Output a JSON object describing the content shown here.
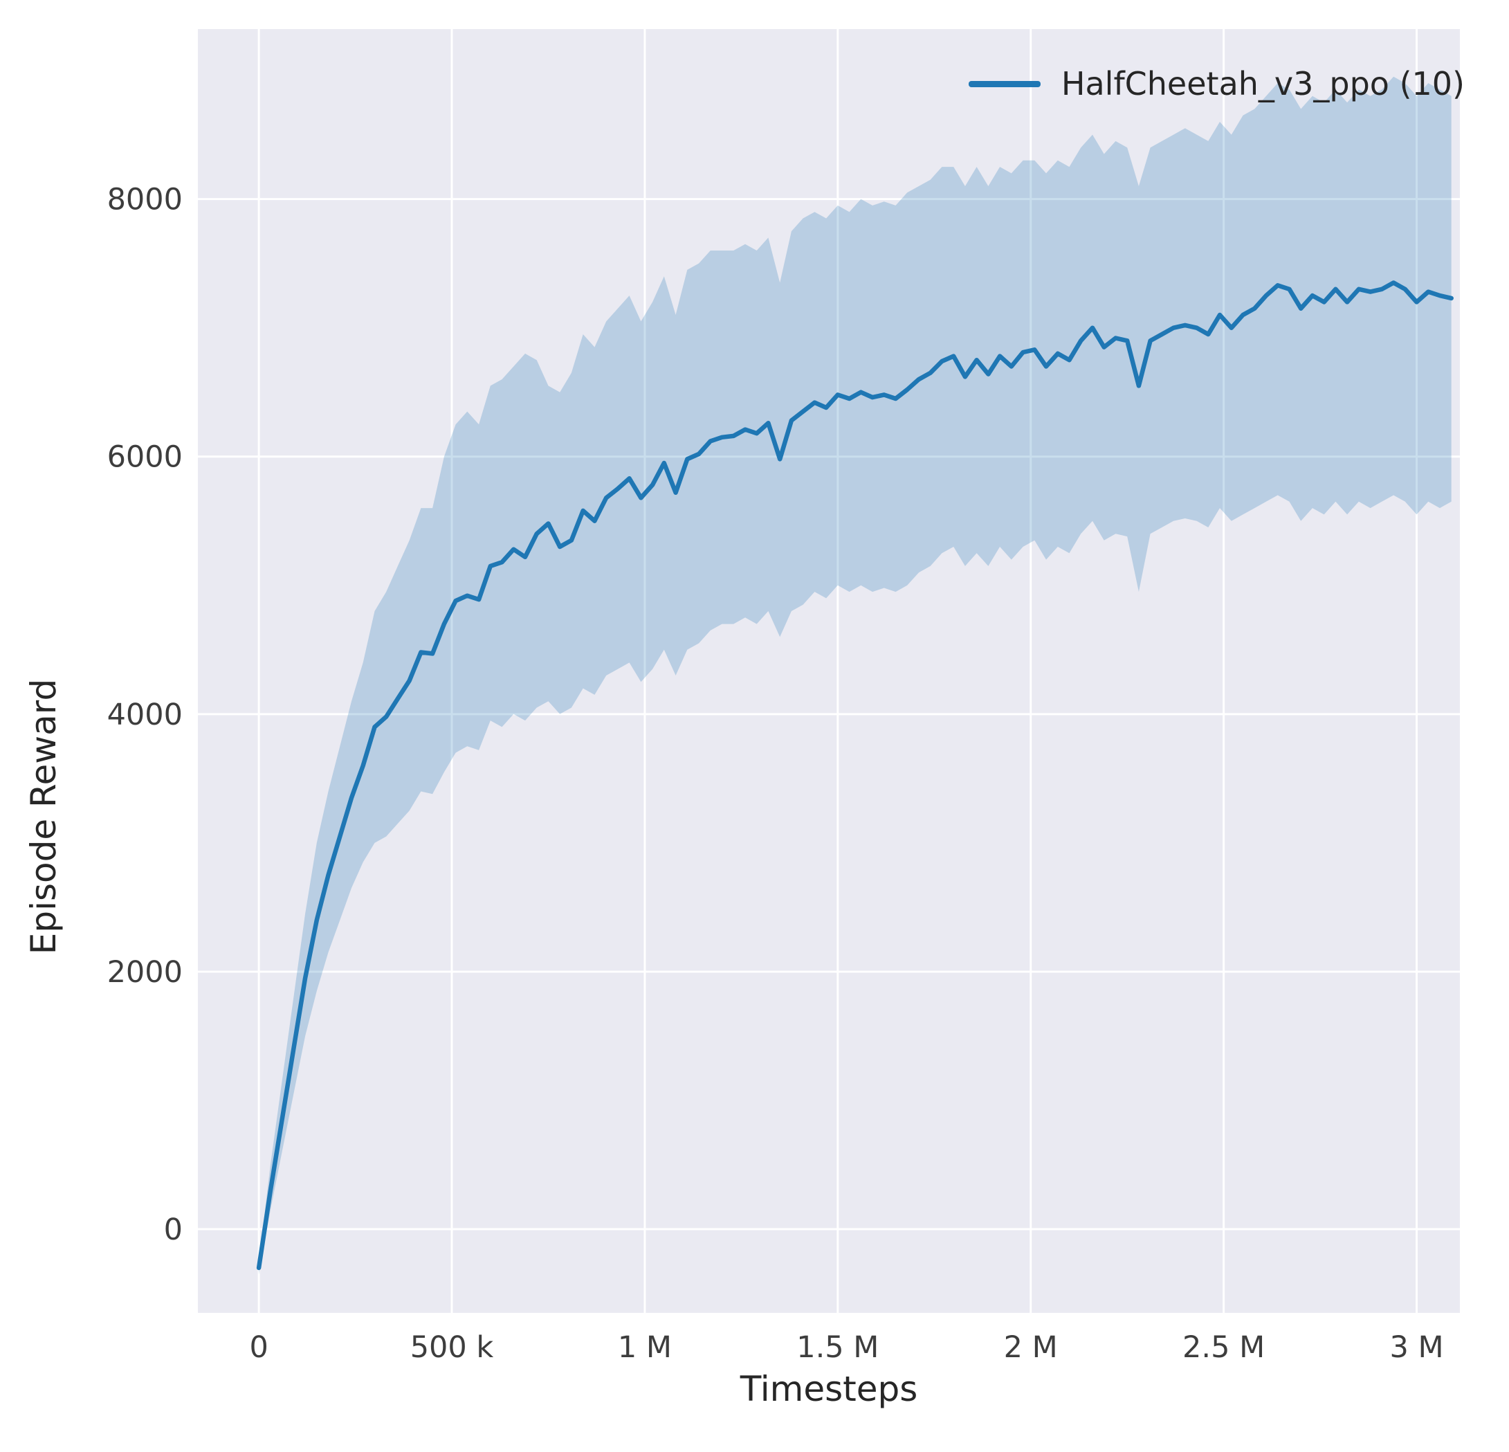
{
  "figure": {
    "background": "#ffffff"
  },
  "axes": {
    "background": "#eaeaf2",
    "grid_color": "#ffffff",
    "text_color": "#3d3d3d",
    "label_color": "#262626"
  },
  "chart_data": {
    "type": "line",
    "title": "",
    "xlabel": "Timesteps",
    "ylabel": "Episode Reward",
    "grid": true,
    "xlim": [
      -158000,
      3112000
    ],
    "ylim": [
      -650,
      9320
    ],
    "xticks": [
      {
        "value": 0,
        "label": "0"
      },
      {
        "value": 500000,
        "label": "500 k"
      },
      {
        "value": 1000000,
        "label": "1 M"
      },
      {
        "value": 1500000,
        "label": "1.5 M"
      },
      {
        "value": 2000000,
        "label": "2 M"
      },
      {
        "value": 2500000,
        "label": "2.5 M"
      },
      {
        "value": 3000000,
        "label": "3 M"
      }
    ],
    "yticks": [
      {
        "value": 0,
        "label": "0"
      },
      {
        "value": 2000,
        "label": "2000"
      },
      {
        "value": 4000,
        "label": "4000"
      },
      {
        "value": 6000,
        "label": "6000"
      },
      {
        "value": 8000,
        "label": "8000"
      }
    ],
    "legend": {
      "position": "upper right"
    },
    "series": [
      {
        "name": "HalfCheetah_v3_ppo (10)",
        "color": "#1f77b4",
        "band_alpha": 0.24,
        "x": [
          0,
          30000,
          60000,
          90000,
          120000,
          150000,
          180000,
          210000,
          240000,
          270000,
          300000,
          330000,
          360000,
          390000,
          420000,
          450000,
          480000,
          510000,
          540000,
          570000,
          600000,
          630000,
          660000,
          690000,
          720000,
          750000,
          780000,
          810000,
          840000,
          870000,
          900000,
          930000,
          960000,
          990000,
          1020000,
          1050000,
          1080000,
          1110000,
          1140000,
          1170000,
          1200000,
          1230000,
          1260000,
          1290000,
          1320000,
          1350000,
          1380000,
          1410000,
          1440000,
          1470000,
          1500000,
          1530000,
          1560000,
          1590000,
          1620000,
          1650000,
          1680000,
          1710000,
          1740000,
          1770000,
          1800000,
          1830000,
          1860000,
          1890000,
          1920000,
          1950000,
          1980000,
          2010000,
          2040000,
          2070000,
          2100000,
          2130000,
          2160000,
          2190000,
          2220000,
          2250000,
          2280000,
          2310000,
          2340000,
          2370000,
          2400000,
          2430000,
          2460000,
          2490000,
          2520000,
          2550000,
          2580000,
          2610000,
          2640000,
          2670000,
          2700000,
          2730000,
          2760000,
          2790000,
          2820000,
          2850000,
          2880000,
          2910000,
          2940000,
          2970000,
          3000000,
          3030000,
          3060000,
          3090000
        ],
        "mean": [
          -300,
          300,
          850,
          1400,
          1950,
          2400,
          2750,
          3050,
          3350,
          3600,
          3900,
          3980,
          4120,
          4260,
          4480,
          4470,
          4700,
          4880,
          4920,
          4890,
          5150,
          5180,
          5280,
          5220,
          5400,
          5480,
          5300,
          5350,
          5580,
          5500,
          5680,
          5750,
          5830,
          5680,
          5780,
          5950,
          5720,
          5980,
          6020,
          6120,
          6150,
          6160,
          6210,
          6180,
          6260,
          5980,
          6280,
          6350,
          6420,
          6380,
          6480,
          6450,
          6500,
          6460,
          6480,
          6450,
          6520,
          6600,
          6650,
          6740,
          6780,
          6620,
          6750,
          6640,
          6780,
          6700,
          6810,
          6830,
          6700,
          6800,
          6750,
          6900,
          7000,
          6850,
          6920,
          6900,
          6550,
          6900,
          6950,
          7000,
          7020,
          7000,
          6950,
          7100,
          7000,
          7100,
          7150,
          7250,
          7330,
          7300,
          7150,
          7250,
          7200,
          7300,
          7200,
          7300,
          7280,
          7300,
          7350,
          7300,
          7200,
          7280,
          7250,
          7230
        ],
        "lower": [
          -350,
          150,
          600,
          1050,
          1500,
          1850,
          2150,
          2400,
          2650,
          2850,
          3000,
          3050,
          3150,
          3250,
          3400,
          3380,
          3550,
          3700,
          3750,
          3720,
          3950,
          3900,
          4000,
          3950,
          4050,
          4100,
          4000,
          4050,
          4200,
          4150,
          4300,
          4350,
          4400,
          4250,
          4350,
          4500,
          4300,
          4500,
          4550,
          4650,
          4700,
          4700,
          4750,
          4700,
          4800,
          4600,
          4800,
          4850,
          4950,
          4900,
          5000,
          4950,
          5000,
          4950,
          4980,
          4950,
          5000,
          5100,
          5150,
          5250,
          5300,
          5150,
          5250,
          5150,
          5300,
          5200,
          5300,
          5350,
          5200,
          5300,
          5250,
          5400,
          5500,
          5350,
          5400,
          5380,
          4950,
          5400,
          5450,
          5500,
          5520,
          5500,
          5450,
          5600,
          5500,
          5550,
          5600,
          5650,
          5700,
          5650,
          5500,
          5600,
          5550,
          5650,
          5550,
          5650,
          5600,
          5650,
          5700,
          5650,
          5550,
          5650,
          5600,
          5650
        ],
        "upper": [
          -250,
          500,
          1150,
          1800,
          2450,
          3000,
          3400,
          3750,
          4100,
          4400,
          4800,
          4950,
          5150,
          5350,
          5600,
          5600,
          6000,
          6250,
          6350,
          6250,
          6550,
          6600,
          6700,
          6800,
          6750,
          6550,
          6500,
          6650,
          6950,
          6850,
          7050,
          7150,
          7250,
          7050,
          7200,
          7400,
          7100,
          7450,
          7500,
          7600,
          7600,
          7600,
          7650,
          7600,
          7700,
          7350,
          7750,
          7850,
          7900,
          7850,
          7950,
          7900,
          8000,
          7950,
          7980,
          7950,
          8050,
          8100,
          8150,
          8250,
          8250,
          8100,
          8250,
          8100,
          8250,
          8200,
          8300,
          8300,
          8200,
          8300,
          8250,
          8400,
          8500,
          8350,
          8450,
          8400,
          8100,
          8400,
          8450,
          8500,
          8550,
          8500,
          8450,
          8600,
          8500,
          8650,
          8700,
          8800,
          8900,
          8850,
          8700,
          8800,
          8750,
          8850,
          8750,
          8850,
          8800,
          8850,
          8950,
          8900,
          8800,
          8900,
          8850,
          8800
        ]
      }
    ]
  }
}
